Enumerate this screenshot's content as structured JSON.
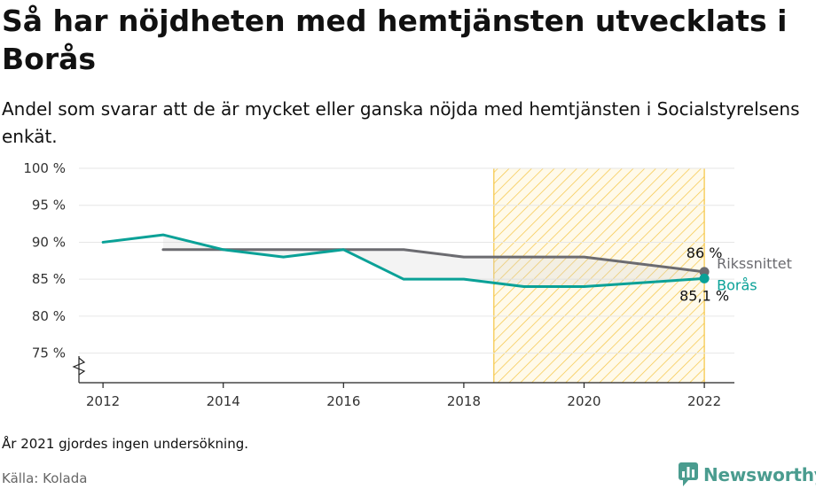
{
  "title": "Så har nöjdheten med hemtjänsten utvecklats i Borås",
  "subtitle": "Andel som svarar att de är mycket eller ganska nöjda med hemtjänsten i Socialstyrelsens enkät.",
  "note": "År 2021 gjordes ingen undersökning.",
  "source": "Källa: Kolada",
  "brand": {
    "name": "Newsworthy",
    "icon": "newsworthy-logo-icon",
    "color": "#4a9c8f"
  },
  "chart_data": {
    "type": "line",
    "xlim": [
      2011.6,
      2022.5
    ],
    "ylim": [
      71,
      100
    ],
    "x_ticks": [
      2012,
      2014,
      2016,
      2018,
      2020,
      2022
    ],
    "x_tick_labels": [
      "2012",
      "2014",
      "2016",
      "2018",
      "2020",
      "2022"
    ],
    "y_ticks": [
      75,
      80,
      85,
      90,
      95,
      100
    ],
    "y_tick_labels": [
      "75 %",
      "80 %",
      "85 %",
      "90 %",
      "95 %",
      "100 %"
    ],
    "y_axis_broken": true,
    "grid": true,
    "highlight_band": {
      "from": 2018.5,
      "to": 2022,
      "color": "#f5c542"
    },
    "series": [
      {
        "name": "Rikssnittet",
        "color": "#6b6b70",
        "x": [
          2013,
          2014,
          2015,
          2016,
          2017,
          2018,
          2019,
          2020,
          2022
        ],
        "values": [
          89,
          89,
          89,
          89,
          89,
          88,
          88,
          88,
          86
        ],
        "end_label": "86 %"
      },
      {
        "name": "Borås",
        "color": "#0aa197",
        "x": [
          2012,
          2013,
          2014,
          2015,
          2016,
          2017,
          2018,
          2019,
          2020,
          2022
        ],
        "values": [
          90,
          91,
          89,
          88,
          89,
          85,
          85,
          84,
          84,
          85.1
        ],
        "end_label": "85,1 %"
      }
    ]
  }
}
